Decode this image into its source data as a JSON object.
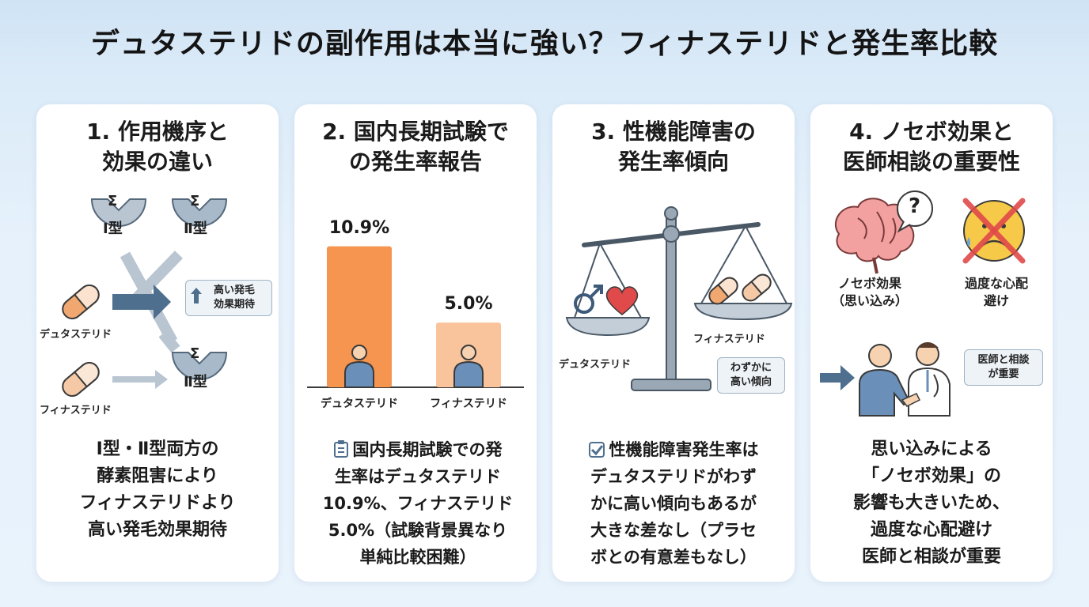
{
  "title": "デュタステリドの副作用は本当に強い？フィナステリドと発生率比較",
  "cards": [
    {
      "title_lines": [
        "1. 作用機序と",
        "効果の違い"
      ],
      "type1_label": "Ⅰ型",
      "type2_label": "Ⅱ型",
      "sigma": "Σ",
      "dutasteride_label": "デュタステリド",
      "finasteride_label": "フィナステリド",
      "callout_lines": [
        "高い発毛",
        "効果期待"
      ],
      "body_lines": [
        "Ⅰ型・Ⅱ型両方の",
        "酵素阻害により",
        "フィナステリドより",
        "高い発毛効果期待"
      ]
    },
    {
      "title_lines": [
        "2. 国内長期試験で",
        "の発生率報告"
      ],
      "bars": [
        {
          "label": "デュタステリド",
          "value": 10.9,
          "display": "10.9%",
          "color": "#f5954f"
        },
        {
          "label": "フィナステリド",
          "value": 5.0,
          "display": "5.0%",
          "color": "#f9c49c"
        }
      ],
      "body_lines": [
        "国内長期試験での発",
        "生率はデュタステリド",
        "10.9%、フィナステリド",
        "5.0%（試験背景異なり",
        "単純比較困難）"
      ]
    },
    {
      "title_lines": [
        "3. 性機能障害の",
        "発生率傾向"
      ],
      "dutasteride_label": "デュタステリド",
      "finasteride_label": "フィナステリド",
      "callout_lines": [
        "わずかに",
        "高い傾向"
      ],
      "body_lines": [
        "性機能障害発生率は",
        "デュタステリドがわず",
        "かに高い傾向もあるが",
        "大きな差なし（プラセ",
        "ボとの有意差もなし）"
      ]
    },
    {
      "title_lines": [
        "4. ノセボ効果と",
        "医師相談の重要性"
      ],
      "nocebo_label_lines": [
        "ノセボ効果",
        "（思い込み）"
      ],
      "worry_label_lines": [
        "過度な心配",
        "避け"
      ],
      "question_mark": "?",
      "callout_lines": [
        "医師と相談",
        "が重要"
      ],
      "body_lines": [
        "思い込みによる",
        "「ノセボ効果」の",
        "影響も大きいため、",
        "過度な心配避け",
        "医師と相談が重要"
      ]
    }
  ],
  "colors": {
    "orange": "#f5954f",
    "light_orange": "#f9c49c",
    "steel_blue": "#4f6f8f",
    "enzyme_gray": "#b9c6d2",
    "heart_red": "#e04a4a"
  }
}
